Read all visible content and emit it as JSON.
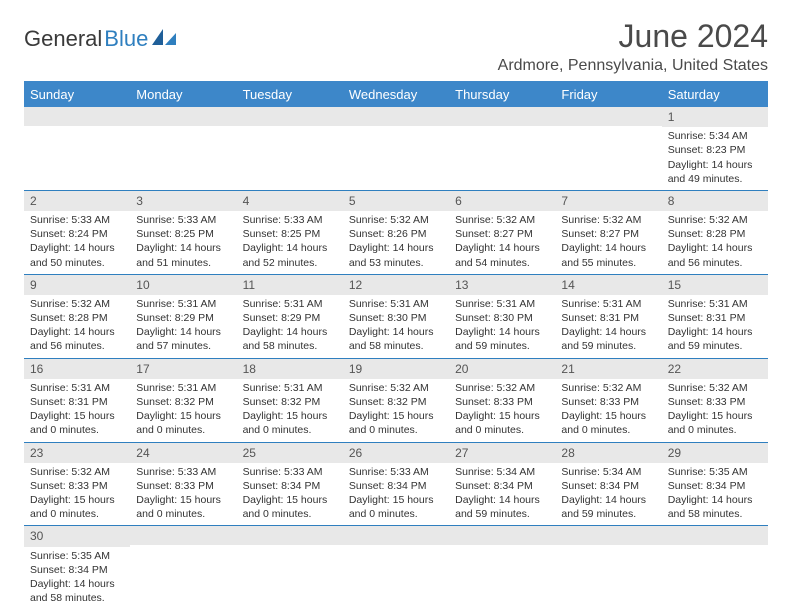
{
  "brand": {
    "part1": "General",
    "part2": "Blue"
  },
  "title": "June 2024",
  "location": "Ardmore, Pennsylvania, United States",
  "colors": {
    "header_bg": "#3d87c9",
    "header_text": "#ffffff",
    "daybar_bg": "#e8e8e8",
    "row_border": "#2f7fbf",
    "logo_blue": "#2f7fbf",
    "text": "#333333"
  },
  "day_headers": [
    "Sunday",
    "Monday",
    "Tuesday",
    "Wednesday",
    "Thursday",
    "Friday",
    "Saturday"
  ],
  "weeks": [
    [
      {
        "n": "",
        "sr": "",
        "ss": "",
        "dl": ""
      },
      {
        "n": "",
        "sr": "",
        "ss": "",
        "dl": ""
      },
      {
        "n": "",
        "sr": "",
        "ss": "",
        "dl": ""
      },
      {
        "n": "",
        "sr": "",
        "ss": "",
        "dl": ""
      },
      {
        "n": "",
        "sr": "",
        "ss": "",
        "dl": ""
      },
      {
        "n": "",
        "sr": "",
        "ss": "",
        "dl": ""
      },
      {
        "n": "1",
        "sr": "Sunrise: 5:34 AM",
        "ss": "Sunset: 8:23 PM",
        "dl": "Daylight: 14 hours and 49 minutes."
      }
    ],
    [
      {
        "n": "2",
        "sr": "Sunrise: 5:33 AM",
        "ss": "Sunset: 8:24 PM",
        "dl": "Daylight: 14 hours and 50 minutes."
      },
      {
        "n": "3",
        "sr": "Sunrise: 5:33 AM",
        "ss": "Sunset: 8:25 PM",
        "dl": "Daylight: 14 hours and 51 minutes."
      },
      {
        "n": "4",
        "sr": "Sunrise: 5:33 AM",
        "ss": "Sunset: 8:25 PM",
        "dl": "Daylight: 14 hours and 52 minutes."
      },
      {
        "n": "5",
        "sr": "Sunrise: 5:32 AM",
        "ss": "Sunset: 8:26 PM",
        "dl": "Daylight: 14 hours and 53 minutes."
      },
      {
        "n": "6",
        "sr": "Sunrise: 5:32 AM",
        "ss": "Sunset: 8:27 PM",
        "dl": "Daylight: 14 hours and 54 minutes."
      },
      {
        "n": "7",
        "sr": "Sunrise: 5:32 AM",
        "ss": "Sunset: 8:27 PM",
        "dl": "Daylight: 14 hours and 55 minutes."
      },
      {
        "n": "8",
        "sr": "Sunrise: 5:32 AM",
        "ss": "Sunset: 8:28 PM",
        "dl": "Daylight: 14 hours and 56 minutes."
      }
    ],
    [
      {
        "n": "9",
        "sr": "Sunrise: 5:32 AM",
        "ss": "Sunset: 8:28 PM",
        "dl": "Daylight: 14 hours and 56 minutes."
      },
      {
        "n": "10",
        "sr": "Sunrise: 5:31 AM",
        "ss": "Sunset: 8:29 PM",
        "dl": "Daylight: 14 hours and 57 minutes."
      },
      {
        "n": "11",
        "sr": "Sunrise: 5:31 AM",
        "ss": "Sunset: 8:29 PM",
        "dl": "Daylight: 14 hours and 58 minutes."
      },
      {
        "n": "12",
        "sr": "Sunrise: 5:31 AM",
        "ss": "Sunset: 8:30 PM",
        "dl": "Daylight: 14 hours and 58 minutes."
      },
      {
        "n": "13",
        "sr": "Sunrise: 5:31 AM",
        "ss": "Sunset: 8:30 PM",
        "dl": "Daylight: 14 hours and 59 minutes."
      },
      {
        "n": "14",
        "sr": "Sunrise: 5:31 AM",
        "ss": "Sunset: 8:31 PM",
        "dl": "Daylight: 14 hours and 59 minutes."
      },
      {
        "n": "15",
        "sr": "Sunrise: 5:31 AM",
        "ss": "Sunset: 8:31 PM",
        "dl": "Daylight: 14 hours and 59 minutes."
      }
    ],
    [
      {
        "n": "16",
        "sr": "Sunrise: 5:31 AM",
        "ss": "Sunset: 8:31 PM",
        "dl": "Daylight: 15 hours and 0 minutes."
      },
      {
        "n": "17",
        "sr": "Sunrise: 5:31 AM",
        "ss": "Sunset: 8:32 PM",
        "dl": "Daylight: 15 hours and 0 minutes."
      },
      {
        "n": "18",
        "sr": "Sunrise: 5:31 AM",
        "ss": "Sunset: 8:32 PM",
        "dl": "Daylight: 15 hours and 0 minutes."
      },
      {
        "n": "19",
        "sr": "Sunrise: 5:32 AM",
        "ss": "Sunset: 8:32 PM",
        "dl": "Daylight: 15 hours and 0 minutes."
      },
      {
        "n": "20",
        "sr": "Sunrise: 5:32 AM",
        "ss": "Sunset: 8:33 PM",
        "dl": "Daylight: 15 hours and 0 minutes."
      },
      {
        "n": "21",
        "sr": "Sunrise: 5:32 AM",
        "ss": "Sunset: 8:33 PM",
        "dl": "Daylight: 15 hours and 0 minutes."
      },
      {
        "n": "22",
        "sr": "Sunrise: 5:32 AM",
        "ss": "Sunset: 8:33 PM",
        "dl": "Daylight: 15 hours and 0 minutes."
      }
    ],
    [
      {
        "n": "23",
        "sr": "Sunrise: 5:32 AM",
        "ss": "Sunset: 8:33 PM",
        "dl": "Daylight: 15 hours and 0 minutes."
      },
      {
        "n": "24",
        "sr": "Sunrise: 5:33 AM",
        "ss": "Sunset: 8:33 PM",
        "dl": "Daylight: 15 hours and 0 minutes."
      },
      {
        "n": "25",
        "sr": "Sunrise: 5:33 AM",
        "ss": "Sunset: 8:34 PM",
        "dl": "Daylight: 15 hours and 0 minutes."
      },
      {
        "n": "26",
        "sr": "Sunrise: 5:33 AM",
        "ss": "Sunset: 8:34 PM",
        "dl": "Daylight: 15 hours and 0 minutes."
      },
      {
        "n": "27",
        "sr": "Sunrise: 5:34 AM",
        "ss": "Sunset: 8:34 PM",
        "dl": "Daylight: 14 hours and 59 minutes."
      },
      {
        "n": "28",
        "sr": "Sunrise: 5:34 AM",
        "ss": "Sunset: 8:34 PM",
        "dl": "Daylight: 14 hours and 59 minutes."
      },
      {
        "n": "29",
        "sr": "Sunrise: 5:35 AM",
        "ss": "Sunset: 8:34 PM",
        "dl": "Daylight: 14 hours and 58 minutes."
      }
    ],
    [
      {
        "n": "30",
        "sr": "Sunrise: 5:35 AM",
        "ss": "Sunset: 8:34 PM",
        "dl": "Daylight: 14 hours and 58 minutes."
      },
      {
        "n": "",
        "sr": "",
        "ss": "",
        "dl": ""
      },
      {
        "n": "",
        "sr": "",
        "ss": "",
        "dl": ""
      },
      {
        "n": "",
        "sr": "",
        "ss": "",
        "dl": ""
      },
      {
        "n": "",
        "sr": "",
        "ss": "",
        "dl": ""
      },
      {
        "n": "",
        "sr": "",
        "ss": "",
        "dl": ""
      },
      {
        "n": "",
        "sr": "",
        "ss": "",
        "dl": ""
      }
    ]
  ]
}
